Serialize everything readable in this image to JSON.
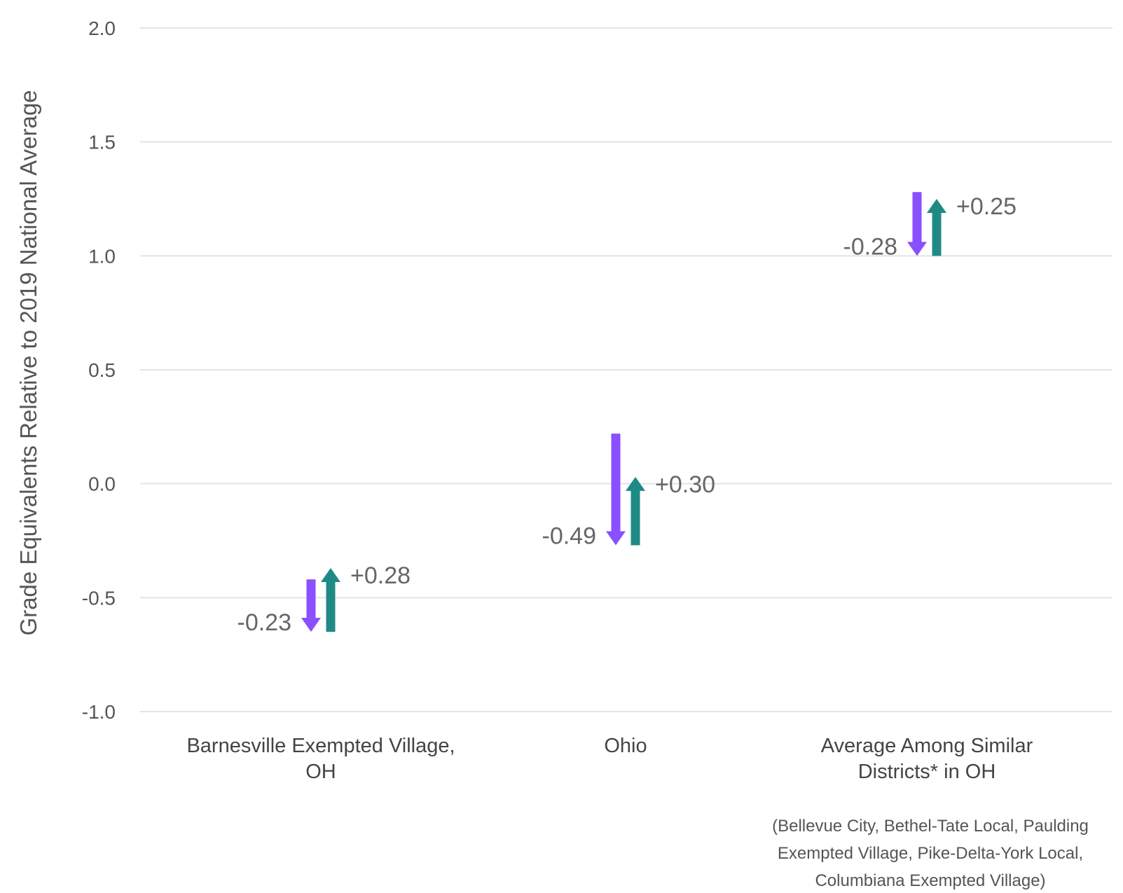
{
  "chart_data": {
    "type": "arrow",
    "ylabel": "Grade Equivalents Relative to 2019 National Average",
    "ylim": [
      -1.0,
      2.0
    ],
    "yticks": [
      2.0,
      1.5,
      1.0,
      0.5,
      0.0,
      -0.5,
      -1.0
    ],
    "ytick_labels": [
      "2.0",
      "1.5",
      "1.0",
      "0.5",
      "0.0",
      "-0.5",
      "-1.0"
    ],
    "grid": true,
    "colors": {
      "decline": "#8A4FFF",
      "recovery": "#1F8A85",
      "grid": "#e3e3e3"
    },
    "categories": [
      {
        "label_lines": [
          "Barnesville Exempted Village,",
          "OH"
        ],
        "start": -0.42,
        "decline": -0.23,
        "recovery": 0.28,
        "decline_label": "-0.23",
        "recovery_label": "+0.28"
      },
      {
        "label_lines": [
          "Ohio"
        ],
        "start": 0.22,
        "decline": -0.49,
        "recovery": 0.3,
        "decline_label": "-0.49",
        "recovery_label": "+0.30"
      },
      {
        "label_lines": [
          "Average Among Similar",
          "Districts* in OH"
        ],
        "start": 1.28,
        "decline": -0.28,
        "recovery": 0.25,
        "decline_label": "-0.28",
        "recovery_label": "+0.25"
      }
    ],
    "footnote_lines": [
      "(Bellevue City, Bethel-Tate Local, Paulding",
      "Exempted Village, Pike-Delta-York Local,",
      "Columbiana Exempted Village)"
    ]
  }
}
